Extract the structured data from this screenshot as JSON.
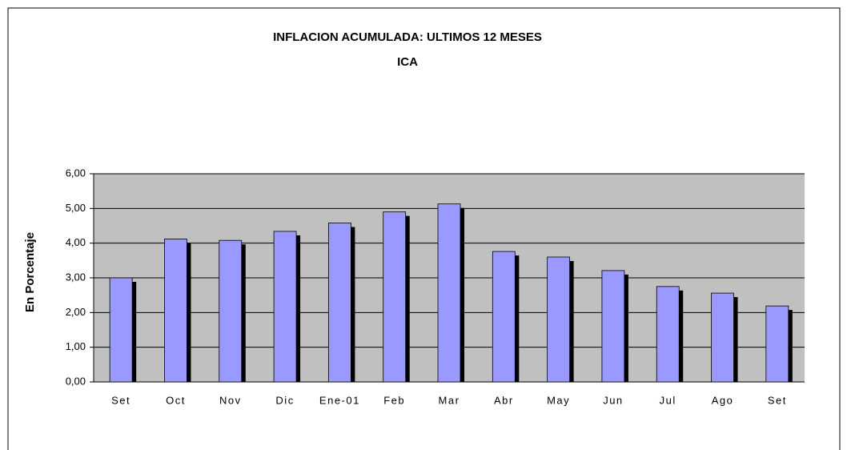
{
  "chart_data": {
    "type": "bar",
    "title": "INFLACION ACUMULADA: ULTIMOS 12 MESES",
    "subtitle": "ICA",
    "y_label": "En Porcentaje",
    "categories": [
      "Set",
      "Oct",
      "Nov",
      "Dic",
      "Ene-01",
      "Feb",
      "Mar",
      "Abr",
      "May",
      "Jun",
      "Jul",
      "Ago",
      "Set"
    ],
    "values": [
      3.0,
      4.12,
      4.08,
      4.34,
      4.58,
      4.9,
      5.13,
      3.76,
      3.6,
      3.21,
      2.75,
      2.56,
      2.19
    ],
    "color": "#9999ff",
    "ylim": [
      0,
      6
    ],
    "yticks": [
      {
        "value": 0,
        "label": "0,00"
      },
      {
        "value": 1,
        "label": "1,00"
      },
      {
        "value": 2,
        "label": "2,00"
      },
      {
        "value": 3,
        "label": "3,00"
      },
      {
        "value": 4,
        "label": "4,00"
      },
      {
        "value": 5,
        "label": "5,00"
      },
      {
        "value": 6,
        "label": "6,00"
      }
    ],
    "grid": true
  }
}
